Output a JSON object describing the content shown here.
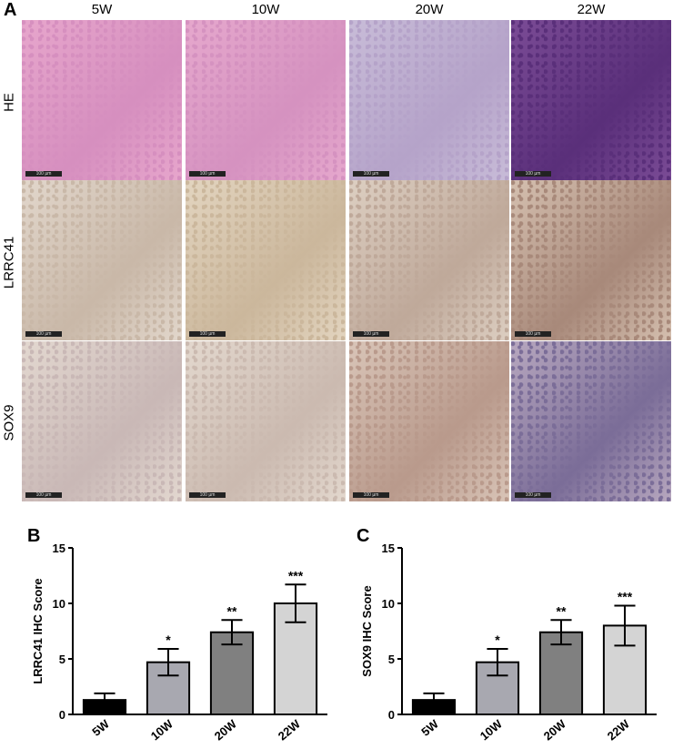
{
  "panel_labels": {
    "a": "A",
    "b": "B",
    "c": "C"
  },
  "columns": [
    "5W",
    "10W",
    "20W",
    "22W"
  ],
  "rows": [
    "HE",
    "LRRC41",
    "SOX9"
  ],
  "scale_bar_label": "100 µm",
  "tile_colors": {
    "HE": [
      [
        "#e7a6cc",
        "#d68fbf"
      ],
      [
        "#e6a8cd",
        "#d592c0"
      ],
      [
        "#c8bcd8",
        "#b5a3c9"
      ],
      [
        "#7b4c96",
        "#5a2f7a"
      ]
    ],
    "LRRC41": [
      [
        "#e2d7cc",
        "#c9b8a8"
      ],
      [
        "#e3d5c0",
        "#cbb79c"
      ],
      [
        "#ddcfc2",
        "#bfa99a"
      ],
      [
        "#d5c0b0",
        "#a8897a"
      ]
    ],
    "SOX9": [
      [
        "#e3d8d0",
        "#c9b8b6"
      ],
      [
        "#e3d8ce",
        "#cbbab0"
      ],
      [
        "#d9c5b8",
        "#b99a8c"
      ],
      [
        "#b8a8bf",
        "#7b6d98"
      ]
    ]
  },
  "chart_data": [
    {
      "type": "bar",
      "panel": "B",
      "categories": [
        "5W",
        "10W",
        "20W",
        "22W"
      ],
      "values": [
        1.3,
        4.7,
        7.4,
        10.0
      ],
      "errors": [
        0.6,
        1.2,
        1.1,
        1.7
      ],
      "significance": [
        "",
        "*",
        "**",
        "***"
      ],
      "bar_colors": [
        "#000000",
        "#a8a8b0",
        "#808080",
        "#d4d4d4"
      ],
      "ylabel": "LRRC41 IHC Score",
      "ylim": [
        0,
        15
      ],
      "yticks": [
        0,
        5,
        10,
        15
      ],
      "grid": false
    },
    {
      "type": "bar",
      "panel": "C",
      "categories": [
        "5W",
        "10W",
        "20W",
        "22W"
      ],
      "values": [
        1.3,
        4.7,
        7.4,
        8.0
      ],
      "errors": [
        0.6,
        1.2,
        1.1,
        1.8
      ],
      "significance": [
        "",
        "*",
        "**",
        "***"
      ],
      "bar_colors": [
        "#000000",
        "#a8a8b0",
        "#808080",
        "#d4d4d4"
      ],
      "ylabel": "SOX9 IHC Score",
      "ylim": [
        0,
        15
      ],
      "yticks": [
        0,
        5,
        10,
        15
      ],
      "grid": false
    }
  ]
}
